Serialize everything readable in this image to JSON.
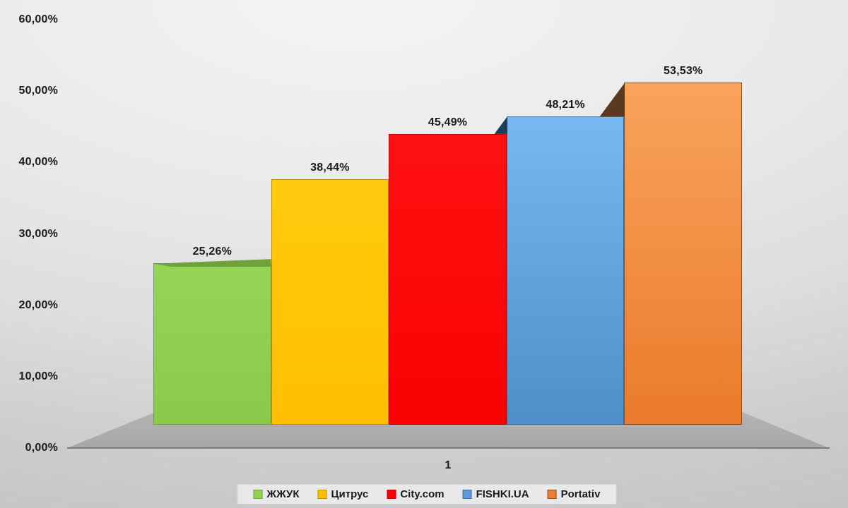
{
  "chart_data": {
    "type": "bar",
    "style": "3d-column",
    "title": "",
    "xlabel": "",
    "ylabel": "",
    "categories": [
      "1"
    ],
    "series": [
      {
        "name": "ЖЖУК",
        "value": 25.26,
        "label": "25,26%",
        "marker": "#92D050",
        "color_top": "#95D457",
        "color_bottom": "#8AC94A",
        "border": "#70A53F",
        "accent_shape": "top",
        "accent_color": "#6FA23B"
      },
      {
        "name": "Цитрус",
        "value": 38.44,
        "label": "38,44%",
        "marker": "#FFC000",
        "color_top": "#FFCA0E",
        "color_bottom": "#FFBF00",
        "border": "#BF9000",
        "accent_shape": "none",
        "accent_color": ""
      },
      {
        "name": "City.com",
        "value": 45.49,
        "label": "45,49%",
        "marker": "#FF0000",
        "color_top": "#FF1111",
        "color_bottom": "#FA0000",
        "border": "#C00000",
        "accent_shape": "none",
        "accent_color": ""
      },
      {
        "name": "FISHKI.UA",
        "value": 48.21,
        "label": "48,21%",
        "marker": "#5B9BD5",
        "color_top": "#78B8F0",
        "color_bottom": "#4E8FC9",
        "border": "#3E6E9E",
        "accent_shape": "corner",
        "accent_color": "#1F3C55"
      },
      {
        "name": "Portativ",
        "value": 53.53,
        "label": "53,53%",
        "marker": "#ED7D31",
        "color_top": "#F8A35B",
        "color_bottom": "#EB7A2C",
        "border": "#8C4A18",
        "accent_shape": "corner",
        "accent_color": "#5B3820"
      }
    ],
    "y_ticks": [
      "60,00%",
      "50,00%",
      "40,00%",
      "30,00%",
      "20,00%",
      "10,00%",
      "0,00%"
    ],
    "ylim": [
      0,
      60
    ],
    "grid": false,
    "legend_position": "bottom",
    "layout_hints": {
      "floor_color": "#ABABAB",
      "axis_line_color": "#7C7C7C",
      "legend_bg": "#E9E9E9"
    }
  }
}
